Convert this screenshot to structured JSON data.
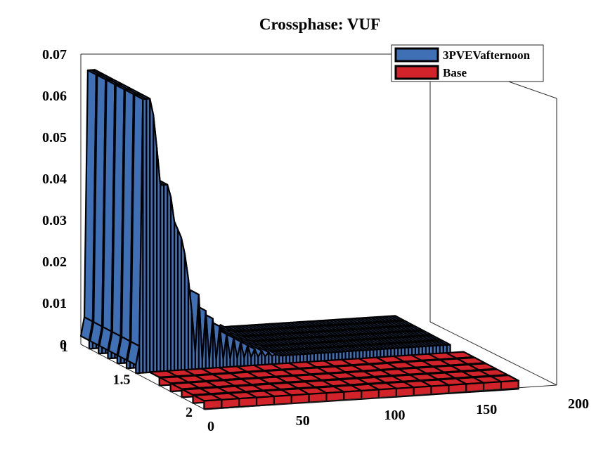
{
  "chart_data": {
    "type": "3d-ribbon",
    "title": "Crossphase: VUF",
    "xlabel": "",
    "ylabel": "",
    "zlabel": "",
    "xlim": [
      0,
      200
    ],
    "ylim": [
      1,
      2
    ],
    "zlim": [
      0,
      0.07
    ],
    "x_ticks": [
      "0",
      "50",
      "100",
      "150",
      "200"
    ],
    "y_ticks": [
      "1",
      "1.5",
      "2"
    ],
    "z_ticks": [
      "0",
      "0.01",
      "0.02",
      "0.03",
      "0.04",
      "0.05",
      "0.06",
      "0.07"
    ],
    "legend_position": "top-right",
    "series": [
      {
        "name": "3PVEVafternoon",
        "color": "#3f6fb5",
        "y_range": [
          1.0,
          1.45
        ],
        "x": [
          0,
          2,
          4,
          6,
          8,
          10,
          12,
          14,
          16,
          18,
          20,
          22,
          24,
          26,
          28,
          30,
          32,
          34,
          36,
          38,
          40,
          42,
          44,
          46,
          48,
          50,
          52,
          54,
          56,
          58,
          60,
          62,
          64,
          66,
          68,
          70,
          72,
          74,
          76,
          78,
          80,
          82,
          84,
          86,
          88,
          90,
          92,
          94,
          96,
          98,
          100,
          102,
          104,
          106,
          108,
          110,
          112,
          114,
          116,
          118,
          120,
          122,
          124,
          126,
          128,
          130,
          132,
          134,
          136,
          138,
          140,
          142,
          144,
          146,
          148,
          150,
          152,
          154,
          156,
          158,
          160,
          162,
          164,
          166,
          168,
          170,
          172,
          174,
          176,
          178,
          180
        ],
        "values": [
          0.002,
          0.0065,
          0.066,
          0.066,
          0.066,
          0.062,
          0.054,
          0.045,
          0.045,
          0.045,
          0.042,
          0.036,
          0.034,
          0.032,
          0.028,
          0.022,
          0.014,
          0.004,
          0.018,
          0.002,
          0.014,
          0.002,
          0.012,
          0.002,
          0.01,
          0.002,
          0.008,
          0.002,
          0.007,
          0.002,
          0.006,
          0.002,
          0.005,
          0.002,
          0.004,
          0.002,
          0.0035,
          0.002,
          0.003,
          0.002,
          0.0025,
          0.002,
          0.002,
          0.002,
          0.002,
          0.002,
          0.002,
          0.002,
          0.002,
          0.002,
          0.002,
          0.002,
          0.002,
          0.002,
          0.002,
          0.002,
          0.002,
          0.002,
          0.002,
          0.002,
          0.002,
          0.002,
          0.002,
          0.002,
          0.002,
          0.002,
          0.002,
          0.002,
          0.002,
          0.002,
          0.002,
          0.002,
          0.002,
          0.002,
          0.002,
          0.002,
          0.002,
          0.002,
          0.002,
          0.002,
          0.002,
          0.002,
          0.002,
          0.002,
          0.002,
          0.002,
          0.002,
          0.002,
          0.002,
          0.002,
          0.002
        ]
      },
      {
        "name": "Base",
        "color": "#d2232a",
        "y_range": [
          1.55,
          2.0
        ],
        "x": [
          0,
          10,
          20,
          30,
          40,
          50,
          60,
          70,
          80,
          90,
          100,
          110,
          120,
          130,
          140,
          150,
          160,
          170,
          180
        ],
        "values": [
          0.002,
          0.002,
          0.002,
          0.002,
          0.002,
          0.002,
          0.002,
          0.002,
          0.002,
          0.002,
          0.002,
          0.002,
          0.002,
          0.002,
          0.002,
          0.002,
          0.002,
          0.002,
          0.002
        ]
      }
    ]
  }
}
